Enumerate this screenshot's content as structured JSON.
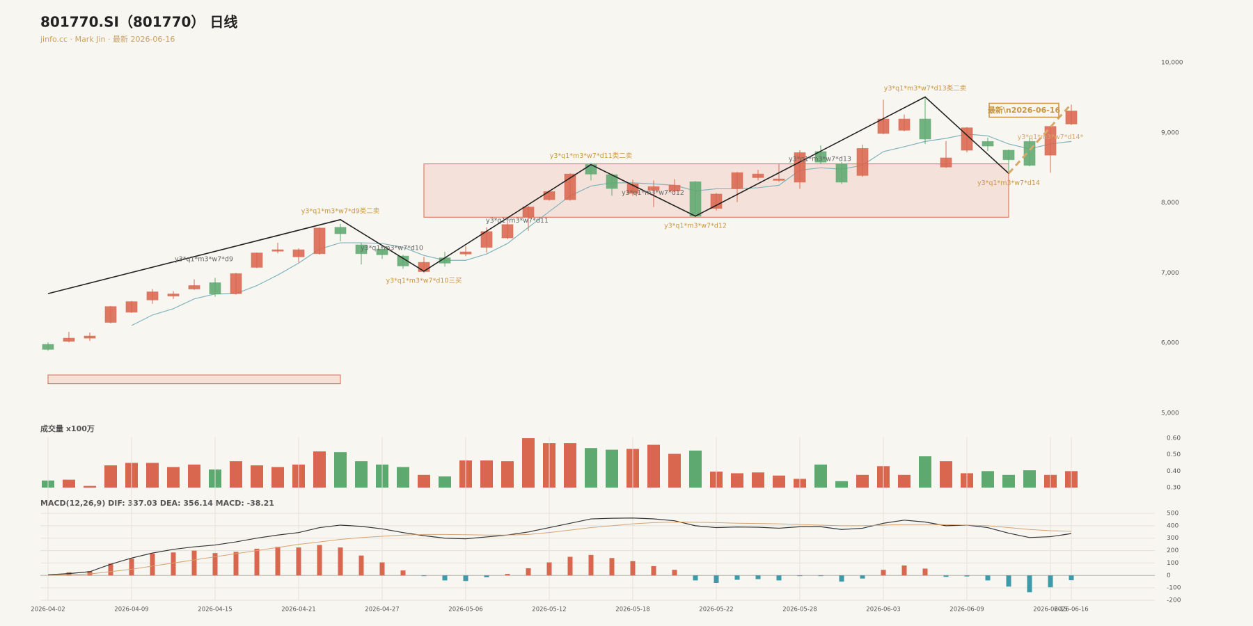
{
  "chart_data": [
    {
      "type": "candlestick",
      "title": "801770.SI（801770） 日线",
      "subtitle": "jinfo.cc · Mark Jin · 最新 2026-06-16",
      "up_color": "#d9674f",
      "down_color": "#5ea96f",
      "open": [
        5980,
        6025,
        6070,
        6295,
        6440,
        6615,
        6670,
        6770,
        6860,
        6705,
        7080,
        7310,
        7230,
        7275,
        7650,
        7400,
        7340,
        7240,
        7020,
        7215,
        7270,
        7365,
        7500,
        7795,
        8045,
        8045,
        8545,
        8400,
        8135,
        8180,
        8170,
        8300,
        7920,
        8205,
        8360,
        8320,
        8295,
        8730,
        8555,
        8390,
        8990,
        9035,
        9195,
        8510,
        8750,
        8875,
        8750,
        8875,
        8680,
        9125
      ],
      "high": [
        6010,
        6160,
        6150,
        6530,
        6600,
        6770,
        6740,
        6910,
        6930,
        7000,
        7290,
        7430,
        7350,
        7650,
        7700,
        7430,
        7380,
        7260,
        7230,
        7300,
        7380,
        7650,
        7750,
        7960,
        8180,
        8420,
        8560,
        8420,
        8330,
        8320,
        8340,
        8310,
        8140,
        8440,
        8470,
        8560,
        8750,
        8820,
        8580,
        8830,
        9470,
        9260,
        9500,
        8880,
        9080,
        8930,
        8760,
        8950,
        9100,
        9400
      ],
      "low": [
        5890,
        6010,
        6030,
        6280,
        6430,
        6560,
        6630,
        6760,
        6660,
        6690,
        7070,
        7280,
        7150,
        7260,
        7450,
        7120,
        7200,
        7060,
        7000,
        7090,
        7240,
        7290,
        7480,
        7600,
        8030,
        8030,
        8320,
        8100,
        8100,
        7940,
        8160,
        7790,
        7890,
        8010,
        8320,
        8300,
        8200,
        8550,
        8270,
        8370,
        8980,
        9020,
        8840,
        8500,
        8720,
        8740,
        8440,
        8520,
        8430,
        9110
      ],
      "close": [
        5910,
        6070,
        6100,
        6520,
        6590,
        6730,
        6700,
        6820,
        6700,
        6990,
        7285,
        7330,
        7330,
        7640,
        7560,
        7275,
        7260,
        7100,
        7150,
        7140,
        7300,
        7590,
        7690,
        7940,
        8160,
        8410,
        8410,
        8205,
        8270,
        8230,
        8250,
        7810,
        8125,
        8430,
        8410,
        8340,
        8715,
        8580,
        8295,
        8775,
        9195,
        9195,
        8910,
        8640,
        9070,
        8810,
        8615,
        8535,
        9090,
        9310
      ],
      "ma": {
        "color": "#7fb3bc",
        "values": [
          null,
          null,
          null,
          null,
          6250,
          6400,
          6490,
          6630,
          6700,
          6705,
          6820,
          6970,
          7140,
          7340,
          7430,
          7430,
          7420,
          7365,
          7250,
          7180,
          7180,
          7270,
          7420,
          7650,
          7875,
          8100,
          8240,
          8285,
          8285,
          8270,
          8250,
          8170,
          8200,
          8200,
          8215,
          8250,
          8465,
          8500,
          8480,
          8535,
          8730,
          8800,
          8875,
          8920,
          8980,
          8955,
          8840,
          8770,
          8840,
          8875
        ]
      },
      "zigzag": {
        "color": "#222222",
        "x": [
          0,
          14,
          18,
          26,
          31,
          42,
          46
        ],
        "values": [
          6705,
          7760,
          7025,
          8545,
          7810,
          9510,
          8420
        ],
        "labels": [
          null,
          "y3*q1*m3*w7*d9类二卖",
          "y3*q1*m3*w7*d10三买",
          "y3*q1*m3*w7*d11类二卖",
          "y3*q1*m3*w7*d12",
          "y3*q1*m3*w7*d13类二卖",
          "y3*q1*m3*w7*d14"
        ],
        "segment_labels": [
          null,
          "y3*q1*m3*w7*d9",
          "y3*q1*m3*w7*d10",
          "y3*q1*m3*w7*d11",
          "y3*q1*m3*w7*d12",
          "y3*q1*m3*w7*d13"
        ]
      },
      "projection": {
        "color": "#d6a86a",
        "x": [
          46,
          49
        ],
        "values": [
          8420,
          9410
        ],
        "label": "y3*q1*m3*w7*d14*",
        "latest_label": "最新\\n2026-06-16"
      },
      "zones": [
        {
          "x": [
            18,
            46
          ],
          "values": [
            7795,
            8555
          ]
        },
        {
          "x": [
            0,
            14
          ],
          "values": [
            5420,
            5545
          ]
        }
      ],
      "ylim": [
        5000,
        10000
      ],
      "yticks": [
        {
          "value": 5000,
          "label": "5,000"
        },
        {
          "value": 6000,
          "label": "6,000"
        },
        {
          "value": 7000,
          "label": "7,000"
        },
        {
          "value": 8000,
          "label": "8,000"
        },
        {
          "value": 9000,
          "label": "9,000"
        },
        {
          "value": 10000,
          "label": "10,000"
        }
      ],
      "grid": false
    },
    {
      "type": "bar",
      "title": "成交量 x100万",
      "values": [
        0.343,
        0.348,
        0.31,
        0.435,
        0.45,
        0.45,
        0.425,
        0.44,
        0.41,
        0.46,
        0.435,
        0.425,
        0.44,
        0.52,
        0.515,
        0.46,
        0.44,
        0.425,
        0.377,
        0.368,
        0.465,
        0.465,
        0.46,
        0.6,
        0.57,
        0.57,
        0.54,
        0.53,
        0.535,
        0.56,
        0.505,
        0.525,
        0.397,
        0.387,
        0.392,
        0.373,
        0.353,
        0.44,
        0.339,
        0.377,
        0.43,
        0.377,
        0.49,
        0.46,
        0.387,
        0.4,
        0.377,
        0.405,
        0.377,
        0.4
      ],
      "ylim": [
        0.3,
        0.6
      ],
      "yticks": [
        {
          "value": 0.3,
          "label": "0.30"
        },
        {
          "value": 0.4,
          "label": "0.40"
        },
        {
          "value": 0.5,
          "label": "0.50"
        },
        {
          "value": 0.6,
          "label": "0.60"
        }
      ],
      "grid": true
    },
    {
      "type": "macd",
      "title": "MACD(12,26,9) DIF: 337.03 DEA: 356.14 MACD: -38.21",
      "categories": [
        "2026-04-02",
        null,
        null,
        null,
        "2026-04-09",
        null,
        null,
        null,
        "2026-04-15",
        null,
        null,
        null,
        "2026-04-21",
        null,
        null,
        null,
        "2026-04-27",
        null,
        null,
        null,
        "2026-05-06",
        null,
        null,
        null,
        "2026-05-12",
        null,
        null,
        null,
        "2026-05-18",
        null,
        null,
        null,
        "2026-05-22",
        null,
        null,
        null,
        "2026-05-28",
        null,
        null,
        null,
        "2026-06-03",
        null,
        null,
        null,
        "2026-06-09",
        null,
        null,
        null,
        "2026-06-15",
        "2026-06-16"
      ],
      "series": [
        {
          "color": "#333333",
          "values": [
            5,
            15,
            30,
            90,
            140,
            180,
            210,
            230,
            245,
            270,
            300,
            325,
            345,
            385,
            405,
            395,
            375,
            345,
            320,
            300,
            295,
            310,
            325,
            350,
            385,
            420,
            455,
            460,
            462,
            455,
            440,
            400,
            385,
            390,
            388,
            380,
            392,
            392,
            370,
            380,
            420,
            445,
            430,
            400,
            405,
            385,
            340,
            305,
            312,
            337.03
          ]
        },
        {
          "color": "#d4a472",
          "values": [
            1,
            5,
            12,
            30,
            50,
            75,
            100,
            125,
            150,
            175,
            200,
            225,
            250,
            270,
            290,
            305,
            315,
            325,
            330,
            330,
            328,
            325,
            325,
            330,
            345,
            365,
            385,
            400,
            415,
            425,
            430,
            428,
            425,
            420,
            418,
            415,
            410,
            405,
            400,
            400,
            405,
            410,
            410,
            408,
            405,
            400,
            385,
            370,
            360,
            356.14
          ]
        }
      ],
      "histogram": {
        "pos_color": "#d9674f",
        "neg_color": "#3d9aa8",
        "values": [
          0,
          25,
          35,
          95,
          135,
          175,
          185,
          200,
          180,
          190,
          215,
          230,
          225,
          245,
          225,
          160,
          105,
          40,
          -5,
          -40,
          -45,
          -15,
          12,
          58,
          105,
          150,
          165,
          140,
          115,
          75,
          45,
          -40,
          -60,
          -35,
          -30,
          -40,
          -5,
          -5,
          -50,
          -25,
          45,
          80,
          55,
          -12,
          -8,
          -40,
          -90,
          -135,
          -95,
          -38.21
        ]
      },
      "ylim": [
        -200,
        500
      ],
      "yticks": [
        -200,
        -100,
        0,
        100,
        200,
        300,
        400,
        500
      ],
      "grid": true
    }
  ]
}
